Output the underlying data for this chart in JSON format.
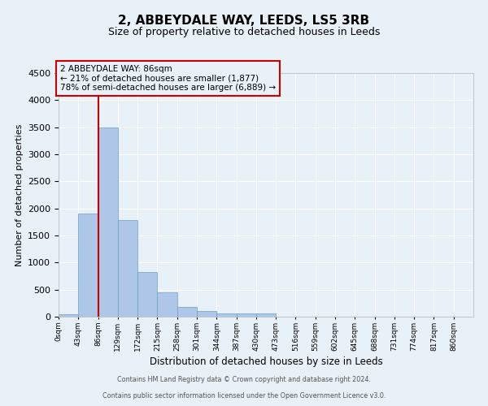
{
  "title1": "2, ABBEYDALE WAY, LEEDS, LS5 3RB",
  "title2": "Size of property relative to detached houses in Leeds",
  "xlabel": "Distribution of detached houses by size in Leeds",
  "ylabel": "Number of detached properties",
  "bin_labels": [
    "0sqm",
    "43sqm",
    "86sqm",
    "129sqm",
    "172sqm",
    "215sqm",
    "258sqm",
    "301sqm",
    "344sqm",
    "387sqm",
    "430sqm",
    "473sqm",
    "516sqm",
    "559sqm",
    "602sqm",
    "645sqm",
    "688sqm",
    "731sqm",
    "774sqm",
    "817sqm",
    "860sqm"
  ],
  "bar_heights": [
    50,
    1900,
    3500,
    1780,
    830,
    450,
    175,
    100,
    65,
    55,
    55,
    0,
    0,
    0,
    0,
    0,
    0,
    0,
    0,
    0
  ],
  "bar_color": "#aec6e8",
  "bar_edge_color": "#6a9ec5",
  "vline_x_index": 2,
  "vline_color": "#cc0000",
  "ylim": [
    0,
    4500
  ],
  "yticks": [
    0,
    500,
    1000,
    1500,
    2000,
    2500,
    3000,
    3500,
    4000,
    4500
  ],
  "annotation_title": "2 ABBEYDALE WAY: 86sqm",
  "annotation_line1": "← 21% of detached houses are smaller (1,877)",
  "annotation_line2": "78% of semi-detached houses are larger (6,889) →",
  "annotation_box_edgecolor": "#cc0000",
  "footer1": "Contains HM Land Registry data © Crown copyright and database right 2024.",
  "footer2": "Contains public sector information licensed under the Open Government Licence v3.0.",
  "bg_color": "#e8f0f8",
  "footer_bg": "#ffffff",
  "grid_color": "#ffffff"
}
